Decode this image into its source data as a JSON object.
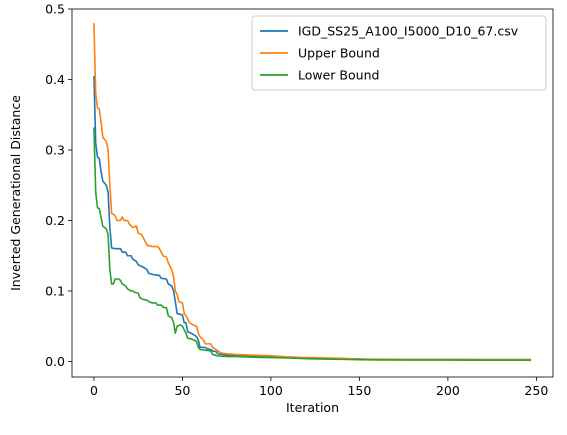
{
  "chart_data": {
    "type": "line",
    "title": "",
    "xlabel": "Iteration",
    "ylabel": "Inverted Generational Distance",
    "xlim": [
      -12.4,
      259.4
    ],
    "ylim": [
      -0.022,
      0.5
    ],
    "xticks": [
      0,
      50,
      100,
      150,
      200,
      250
    ],
    "yticks": [
      0.0,
      0.1,
      0.2,
      0.3,
      0.4,
      0.5
    ],
    "xtick_labels": [
      "0",
      "50",
      "100",
      "150",
      "200",
      "250"
    ],
    "ytick_labels": [
      "0.0",
      "0.1",
      "0.2",
      "0.3",
      "0.4",
      "0.5"
    ],
    "grid": false,
    "legend_position": "top-right",
    "series": [
      {
        "name": "IGD_SS25_A100_I5000_D10_67.csv",
        "color": "#1f77b4",
        "points": [
          [
            0,
            0.405
          ],
          [
            1,
            0.31
          ],
          [
            2,
            0.29
          ],
          [
            3,
            0.288
          ],
          [
            4,
            0.27
          ],
          [
            5,
            0.256
          ],
          [
            6,
            0.253
          ],
          [
            7,
            0.25
          ],
          [
            8,
            0.24
          ],
          [
            9,
            0.19
          ],
          [
            10,
            0.161
          ],
          [
            12,
            0.16
          ],
          [
            15,
            0.16
          ],
          [
            16,
            0.155
          ],
          [
            18,
            0.155
          ],
          [
            19,
            0.15
          ],
          [
            21,
            0.15
          ],
          [
            22,
            0.145
          ],
          [
            24,
            0.142
          ],
          [
            25,
            0.137
          ],
          [
            27,
            0.135
          ],
          [
            29,
            0.132
          ],
          [
            30,
            0.13
          ],
          [
            31,
            0.125
          ],
          [
            34,
            0.123
          ],
          [
            37,
            0.122
          ],
          [
            38,
            0.118
          ],
          [
            41,
            0.117
          ],
          [
            42,
            0.11
          ],
          [
            44,
            0.107
          ],
          [
            45,
            0.1
          ],
          [
            46,
            0.085
          ],
          [
            47,
            0.068
          ],
          [
            50,
            0.066
          ],
          [
            51,
            0.055
          ],
          [
            52,
            0.055
          ],
          [
            53,
            0.042
          ],
          [
            55,
            0.04
          ],
          [
            57,
            0.037
          ],
          [
            58,
            0.035
          ],
          [
            59,
            0.03
          ],
          [
            60,
            0.02
          ],
          [
            63,
            0.02
          ],
          [
            64,
            0.018
          ],
          [
            66,
            0.017
          ],
          [
            67,
            0.015
          ],
          [
            69,
            0.014
          ],
          [
            70,
            0.011
          ],
          [
            73,
            0.01
          ],
          [
            75,
            0.009
          ],
          [
            80,
            0.009
          ],
          [
            90,
            0.008
          ],
          [
            100,
            0.007
          ],
          [
            110,
            0.006
          ],
          [
            120,
            0.005
          ],
          [
            130,
            0.0045
          ],
          [
            140,
            0.004
          ],
          [
            150,
            0.0035
          ],
          [
            160,
            0.003
          ],
          [
            180,
            0.0028
          ],
          [
            200,
            0.0027
          ],
          [
            220,
            0.0026
          ],
          [
            247,
            0.0025
          ]
        ]
      },
      {
        "name": "Upper Bound",
        "color": "#ff7f0e",
        "points": [
          [
            0,
            0.48
          ],
          [
            1,
            0.38
          ],
          [
            2,
            0.36
          ],
          [
            3,
            0.358
          ],
          [
            4,
            0.34
          ],
          [
            5,
            0.318
          ],
          [
            6,
            0.315
          ],
          [
            7,
            0.312
          ],
          [
            8,
            0.3
          ],
          [
            9,
            0.25
          ],
          [
            10,
            0.21
          ],
          [
            12,
            0.207
          ],
          [
            13,
            0.2
          ],
          [
            15,
            0.2
          ],
          [
            16,
            0.205
          ],
          [
            17,
            0.2
          ],
          [
            19,
            0.2
          ],
          [
            20,
            0.195
          ],
          [
            22,
            0.19
          ],
          [
            24,
            0.192
          ],
          [
            25,
            0.182
          ],
          [
            27,
            0.18
          ],
          [
            28,
            0.175
          ],
          [
            29,
            0.17
          ],
          [
            30,
            0.165
          ],
          [
            33,
            0.163
          ],
          [
            36,
            0.163
          ],
          [
            37,
            0.16
          ],
          [
            39,
            0.15
          ],
          [
            41,
            0.148
          ],
          [
            42,
            0.14
          ],
          [
            44,
            0.13
          ],
          [
            45,
            0.12
          ],
          [
            46,
            0.1
          ],
          [
            47,
            0.095
          ],
          [
            48,
            0.085
          ],
          [
            50,
            0.083
          ],
          [
            51,
            0.068
          ],
          [
            52,
            0.065
          ],
          [
            54,
            0.055
          ],
          [
            56,
            0.052
          ],
          [
            58,
            0.05
          ],
          [
            59,
            0.04
          ],
          [
            60,
            0.035
          ],
          [
            62,
            0.03
          ],
          [
            63,
            0.025
          ],
          [
            66,
            0.025
          ],
          [
            67,
            0.02
          ],
          [
            69,
            0.017
          ],
          [
            70,
            0.015
          ],
          [
            72,
            0.012
          ],
          [
            75,
            0.011
          ],
          [
            80,
            0.01
          ],
          [
            90,
            0.009
          ],
          [
            100,
            0.008
          ],
          [
            110,
            0.0065
          ],
          [
            120,
            0.0055
          ],
          [
            130,
            0.005
          ],
          [
            140,
            0.0045
          ],
          [
            150,
            0.0035
          ],
          [
            160,
            0.0033
          ],
          [
            180,
            0.003
          ],
          [
            200,
            0.003
          ],
          [
            220,
            0.0028
          ],
          [
            247,
            0.0028
          ]
        ]
      },
      {
        "name": "Lower Bound",
        "color": "#2ca02c",
        "points": [
          [
            0,
            0.332
          ],
          [
            1,
            0.24
          ],
          [
            2,
            0.218
          ],
          [
            3,
            0.217
          ],
          [
            4,
            0.205
          ],
          [
            5,
            0.192
          ],
          [
            6,
            0.19
          ],
          [
            7,
            0.188
          ],
          [
            8,
            0.18
          ],
          [
            9,
            0.13
          ],
          [
            10,
            0.11
          ],
          [
            11,
            0.11
          ],
          [
            12,
            0.117
          ],
          [
            14,
            0.117
          ],
          [
            15,
            0.115
          ],
          [
            16,
            0.11
          ],
          [
            18,
            0.107
          ],
          [
            19,
            0.103
          ],
          [
            21,
            0.1
          ],
          [
            22,
            0.1
          ],
          [
            23,
            0.098
          ],
          [
            25,
            0.097
          ],
          [
            26,
            0.09
          ],
          [
            28,
            0.088
          ],
          [
            30,
            0.087
          ],
          [
            31,
            0.085
          ],
          [
            33,
            0.083
          ],
          [
            35,
            0.083
          ],
          [
            36,
            0.08
          ],
          [
            38,
            0.08
          ],
          [
            39,
            0.077
          ],
          [
            41,
            0.076
          ],
          [
            42,
            0.065
          ],
          [
            44,
            0.062
          ],
          [
            45,
            0.055
          ],
          [
            46,
            0.04
          ],
          [
            47,
            0.05
          ],
          [
            49,
            0.052
          ],
          [
            50,
            0.05
          ],
          [
            51,
            0.045
          ],
          [
            52,
            0.04
          ],
          [
            53,
            0.033
          ],
          [
            55,
            0.032
          ],
          [
            57,
            0.03
          ],
          [
            58,
            0.028
          ],
          [
            59,
            0.02
          ],
          [
            60,
            0.017
          ],
          [
            63,
            0.016
          ],
          [
            66,
            0.015
          ],
          [
            67,
            0.01
          ],
          [
            70,
            0.008
          ],
          [
            75,
            0.007
          ],
          [
            80,
            0.007
          ],
          [
            90,
            0.006
          ],
          [
            100,
            0.0055
          ],
          [
            110,
            0.005
          ],
          [
            120,
            0.004
          ],
          [
            130,
            0.0035
          ],
          [
            140,
            0.003
          ],
          [
            150,
            0.0025
          ],
          [
            160,
            0.0022
          ],
          [
            180,
            0.002
          ],
          [
            200,
            0.002
          ],
          [
            220,
            0.0019
          ],
          [
            247,
            0.0018
          ]
        ]
      }
    ]
  }
}
